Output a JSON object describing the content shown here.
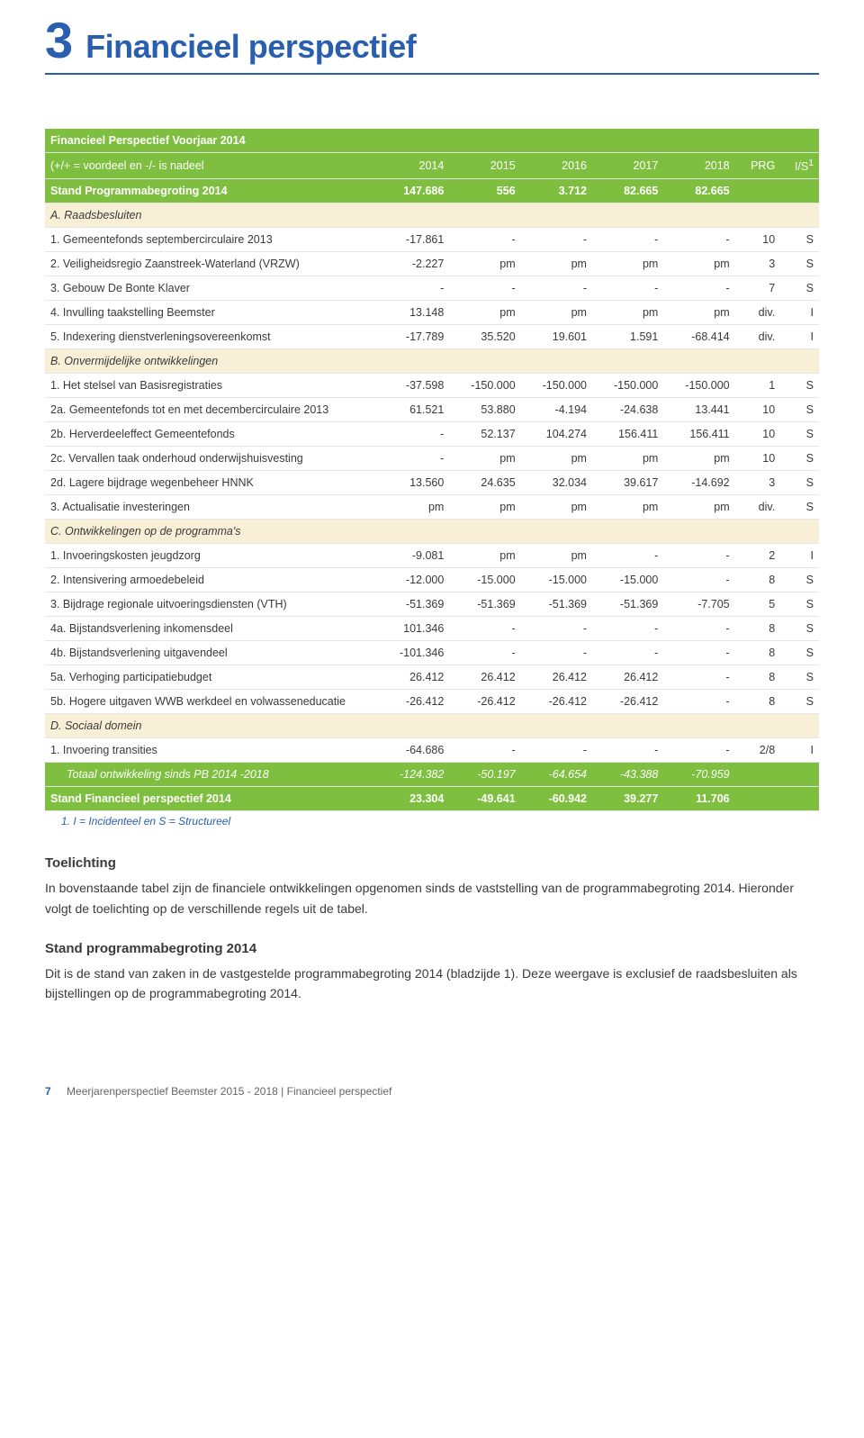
{
  "chapter": {
    "number": "3",
    "title": "Financieel perspectief"
  },
  "table": {
    "header_title": "Financieel Perspectief Voorjaar 2014",
    "columns": [
      "2014",
      "2015",
      "2016",
      "2017",
      "2018",
      "PRG",
      "I/S"
    ],
    "col_label_sub": "(+/+ = voordeel en -/- is nadeel",
    "col_sup": "1",
    "rows": [
      {
        "style": "row-green-strong",
        "label": "Stand Programmabegroting 2014",
        "cells": [
          "147.686",
          "556",
          "3.712",
          "82.665",
          "82.665",
          "",
          ""
        ]
      },
      {
        "style": "row-cream",
        "label": "A. Raadsbesluiten",
        "cells": [
          "",
          "",
          "",
          "",
          "",
          "",
          ""
        ]
      },
      {
        "style": "",
        "label": "1. Gemeentefonds septembercirculaire 2013",
        "cells": [
          "-17.861",
          "-",
          "-",
          "-",
          "-",
          "10",
          "S"
        ]
      },
      {
        "style": "",
        "label": "2. Veiligheidsregio Zaanstreek-Waterland (VRZW)",
        "cells": [
          "-2.227",
          "pm",
          "pm",
          "pm",
          "pm",
          "3",
          "S"
        ]
      },
      {
        "style": "",
        "label": "3. Gebouw De Bonte Klaver",
        "cells": [
          "-",
          "-",
          "-",
          "-",
          "-",
          "7",
          "S"
        ]
      },
      {
        "style": "",
        "label": "4. Invulling taakstelling Beemster",
        "cells": [
          "13.148",
          "pm",
          "pm",
          "pm",
          "pm",
          "div.",
          "I"
        ]
      },
      {
        "style": "",
        "label": "5. Indexering dienstverleningsovereenkomst",
        "cells": [
          "-17.789",
          "35.520",
          "19.601",
          "1.591",
          "-68.414",
          "div.",
          "I"
        ]
      },
      {
        "style": "row-cream",
        "label": "B. Onvermijdelijke ontwikkelingen",
        "cells": [
          "",
          "",
          "",
          "",
          "",
          "",
          ""
        ]
      },
      {
        "style": "",
        "label": "1. Het stelsel van Basisregistraties",
        "cells": [
          "-37.598",
          "-150.000",
          "-150.000",
          "-150.000",
          "-150.000",
          "1",
          "S"
        ]
      },
      {
        "style": "",
        "label": "2a. Gemeentefonds tot en met decembercirculaire 2013",
        "cells": [
          "61.521",
          "53.880",
          "-4.194",
          "-24.638",
          "13.441",
          "10",
          "S"
        ]
      },
      {
        "style": "",
        "label": "2b. Herverdeeleffect Gemeentefonds",
        "cells": [
          "-",
          "52.137",
          "104.274",
          "156.411",
          "156.411",
          "10",
          "S"
        ]
      },
      {
        "style": "",
        "label": "2c. Vervallen taak onderhoud onderwijshuisvesting",
        "cells": [
          "-",
          "pm",
          "pm",
          "pm",
          "pm",
          "10",
          "S"
        ]
      },
      {
        "style": "",
        "label": "2d. Lagere bijdrage wegenbeheer HNNK",
        "cells": [
          "13.560",
          "24.635",
          "32.034",
          "39.617",
          "-14.692",
          "3",
          "S"
        ]
      },
      {
        "style": "",
        "label": "3. Actualisatie investeringen",
        "cells": [
          "pm",
          "pm",
          "pm",
          "pm",
          "pm",
          "div.",
          "S"
        ]
      },
      {
        "style": "row-cream",
        "label": "C. Ontwikkelingen op de programma's",
        "cells": [
          "",
          "",
          "",
          "",
          "",
          "",
          ""
        ]
      },
      {
        "style": "",
        "label": "1. Invoeringskosten jeugdzorg",
        "cells": [
          "-9.081",
          "pm",
          "pm",
          "-",
          "-",
          "2",
          "I"
        ]
      },
      {
        "style": "",
        "label": "2. Intensivering armoedebeleid",
        "cells": [
          "-12.000",
          "-15.000",
          "-15.000",
          "-15.000",
          "-",
          "8",
          "S"
        ]
      },
      {
        "style": "",
        "label": "3. Bijdrage regionale uitvoeringsdiensten (VTH)",
        "cells": [
          "-51.369",
          "-51.369",
          "-51.369",
          "-51.369",
          "-7.705",
          "5",
          "S"
        ]
      },
      {
        "style": "",
        "label": "4a. Bijstandsverlening inkomensdeel",
        "cells": [
          "101.346",
          "-",
          "-",
          "-",
          "-",
          "8",
          "S"
        ]
      },
      {
        "style": "",
        "label": "4b. Bijstandsverlening uitgavendeel",
        "cells": [
          "-101.346",
          "-",
          "-",
          "-",
          "-",
          "8",
          "S"
        ]
      },
      {
        "style": "",
        "label": "5a. Verhoging participatiebudget",
        "cells": [
          "26.412",
          "26.412",
          "26.412",
          "26.412",
          "-",
          "8",
          "S"
        ]
      },
      {
        "style": "",
        "label": "5b. Hogere uitgaven WWB werkdeel en volwasseneducatie",
        "cells": [
          "-26.412",
          "-26.412",
          "-26.412",
          "-26.412",
          "-",
          "8",
          "S"
        ]
      },
      {
        "style": "row-cream",
        "label": "D. Sociaal domein",
        "cells": [
          "",
          "",
          "",
          "",
          "",
          "",
          ""
        ]
      },
      {
        "style": "",
        "label": "1. Invoering transities",
        "cells": [
          "-64.686",
          "-",
          "-",
          "-",
          "-",
          "2/8",
          "I"
        ]
      },
      {
        "style": "row-green-total",
        "label": "Totaal ontwikkeling sinds PB 2014 -2018",
        "cells": [
          "-124.382",
          "-50.197",
          "-64.654",
          "-43.388",
          "-70.959",
          "",
          ""
        ]
      },
      {
        "style": "row-green-strong",
        "label": "Stand Financieel perspectief 2014",
        "cells": [
          "23.304",
          "-49.641",
          "-60.942",
          "39.277",
          "11.706",
          "",
          ""
        ]
      }
    ]
  },
  "footnote": "1.  I = Incidenteel en S = Structureel",
  "body": {
    "h1": "Toelichting",
    "p1": "In bovenstaande tabel zijn de financiele ontwikkelingen opgenomen sinds de vaststelling van de programmabegroting 2014. Hieronder volgt de toelichting op de verschillende regels uit de tabel.",
    "h2": "Stand programmabegroting 2014",
    "p2": "Dit is de stand van zaken in de vastgestelde programmabegroting 2014 (bladzijde 1). Deze weergave is exclusief de raadsbesluiten als bijstellingen op de programmabegroting 2014."
  },
  "footer": {
    "page": "7",
    "text": "Meerjarenperspectief Beemster 2015 - 2018 | Financieel perspectief"
  }
}
